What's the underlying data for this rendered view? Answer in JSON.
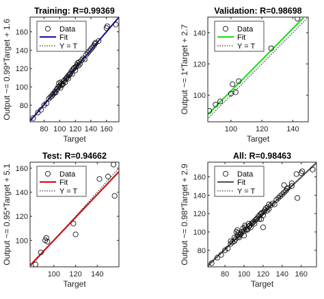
{
  "chart_data": [
    {
      "type": "scatter",
      "title": "Training: R=0.99369",
      "xlabel": "Target",
      "ylabel": "Output ~= 0.99*Target + 1.6",
      "xlim": [
        62,
        176
      ],
      "ylim": [
        62,
        176
      ],
      "xticks": [
        80,
        100,
        120,
        140,
        160
      ],
      "yticks": [
        80,
        100,
        120,
        140,
        160
      ],
      "fit": {
        "slope": 0.99,
        "intercept": 1.6,
        "color": "#1a1aa6"
      },
      "legend": {
        "placement": "top-left",
        "entries": [
          "Data",
          "Fit",
          "Y = T"
        ]
      },
      "points": [
        [
          66,
          66
        ],
        [
          72,
          72
        ],
        [
          76,
          75
        ],
        [
          80,
          80
        ],
        [
          83,
          82
        ],
        [
          86,
          87
        ],
        [
          88,
          89
        ],
        [
          90,
          90
        ],
        [
          91,
          92
        ],
        [
          93,
          93
        ],
        [
          94,
          95
        ],
        [
          95,
          94
        ],
        [
          96,
          97
        ],
        [
          97,
          98
        ],
        [
          98,
          100
        ],
        [
          99,
          104
        ],
        [
          100,
          101
        ],
        [
          101,
          105
        ],
        [
          101,
          99
        ],
        [
          102,
          103
        ],
        [
          103,
          102
        ],
        [
          104,
          103
        ],
        [
          105,
          106
        ],
        [
          106,
          107
        ],
        [
          107,
          105
        ],
        [
          108,
          109
        ],
        [
          109,
          110
        ],
        [
          110,
          111
        ],
        [
          111,
          109
        ],
        [
          112,
          113
        ],
        [
          113,
          114
        ],
        [
          114,
          115
        ],
        [
          115,
          117
        ],
        [
          116,
          114
        ],
        [
          117,
          119
        ],
        [
          118,
          120
        ],
        [
          119,
          121
        ],
        [
          120,
          118
        ],
        [
          121,
          122
        ],
        [
          122,
          124
        ],
        [
          123,
          126
        ],
        [
          124,
          123
        ],
        [
          125,
          127
        ],
        [
          126,
          125
        ],
        [
          128,
          129
        ],
        [
          130,
          131
        ],
        [
          132,
          130
        ],
        [
          134,
          135
        ],
        [
          136,
          137
        ],
        [
          138,
          139
        ],
        [
          140,
          141
        ],
        [
          142,
          143
        ],
        [
          144,
          145
        ],
        [
          145,
          147
        ],
        [
          146,
          148
        ],
        [
          150,
          150
        ],
        [
          160,
          164
        ],
        [
          161,
          166
        ],
        [
          172,
          168
        ]
      ]
    },
    {
      "type": "scatter",
      "title": "Validation: R=0.98698",
      "xlabel": "Target",
      "ylabel": "Output ~= 1*Target + 2.7",
      "xlim": [
        85,
        150
      ],
      "ylim": [
        83,
        150
      ],
      "xticks": [
        100,
        120,
        140
      ],
      "yticks": [
        100,
        120,
        140
      ],
      "fit": {
        "slope": 1.0,
        "intercept": 2.7,
        "color": "#22dd22"
      },
      "legend": {
        "placement": "top-left",
        "entries": [
          "Data",
          "Fit",
          "Y = T"
        ]
      },
      "points": [
        [
          86,
          90
        ],
        [
          90,
          94
        ],
        [
          93,
          96
        ],
        [
          100,
          101
        ],
        [
          101,
          107
        ],
        [
          103,
          102
        ],
        [
          105,
          109
        ],
        [
          126,
          130
        ],
        [
          143,
          149
        ]
      ]
    },
    {
      "type": "scatter",
      "title": "Test: R=0.94662",
      "xlabel": "Target",
      "ylabel": "Output ~= 0.95*Target + 5.1",
      "xlim": [
        78,
        160
      ],
      "ylim": [
        78,
        165
      ],
      "xticks": [
        100,
        120,
        140
      ],
      "yticks": [
        100,
        120,
        140,
        160
      ],
      "fit": {
        "slope": 0.95,
        "intercept": 5.1,
        "color": "#cc1111"
      },
      "legend": {
        "placement": "top-left",
        "entries": [
          "Data",
          "Fit",
          "Y = T"
        ]
      },
      "points": [
        [
          83,
          80
        ],
        [
          88,
          90
        ],
        [
          92,
          100
        ],
        [
          93,
          102
        ],
        [
          94,
          99
        ],
        [
          118,
          114
        ],
        [
          120,
          105
        ],
        [
          142,
          151
        ],
        [
          150,
          153
        ],
        [
          155,
          163
        ],
        [
          156,
          137
        ]
      ]
    },
    {
      "type": "scatter",
      "title": "All: R=0.98463",
      "xlabel": "Target",
      "ylabel": "Output ~= 0.98*Target + 2.9",
      "xlim": [
        62,
        176
      ],
      "ylim": [
        62,
        176
      ],
      "xticks": [
        80,
        100,
        120,
        140,
        160
      ],
      "yticks": [
        80,
        100,
        120,
        140,
        160
      ],
      "fit": {
        "slope": 0.98,
        "intercept": 2.9,
        "color": "#555555"
      },
      "legend": {
        "placement": "top-left",
        "entries": [
          "Data",
          "Fit",
          "Y = T"
        ]
      },
      "points": [
        [
          66,
          66
        ],
        [
          72,
          72
        ],
        [
          76,
          75
        ],
        [
          80,
          80
        ],
        [
          83,
          82
        ],
        [
          86,
          87
        ],
        [
          86,
          90
        ],
        [
          88,
          89
        ],
        [
          90,
          94
        ],
        [
          90,
          90
        ],
        [
          91,
          92
        ],
        [
          92,
          100
        ],
        [
          93,
          96
        ],
        [
          93,
          102
        ],
        [
          94,
          95
        ],
        [
          94,
          99
        ],
        [
          95,
          94
        ],
        [
          96,
          97
        ],
        [
          97,
          98
        ],
        [
          98,
          100
        ],
        [
          99,
          104
        ],
        [
          100,
          101
        ],
        [
          100,
          96
        ],
        [
          101,
          105
        ],
        [
          101,
          107
        ],
        [
          102,
          103
        ],
        [
          103,
          102
        ],
        [
          104,
          103
        ],
        [
          105,
          109
        ],
        [
          105,
          106
        ],
        [
          106,
          107
        ],
        [
          107,
          105
        ],
        [
          108,
          109
        ],
        [
          109,
          110
        ],
        [
          110,
          111
        ],
        [
          111,
          109
        ],
        [
          112,
          113
        ],
        [
          113,
          114
        ],
        [
          114,
          115
        ],
        [
          115,
          117
        ],
        [
          116,
          114
        ],
        [
          117,
          119
        ],
        [
          118,
          114
        ],
        [
          118,
          120
        ],
        [
          119,
          121
        ],
        [
          120,
          105
        ],
        [
          120,
          118
        ],
        [
          121,
          122
        ],
        [
          122,
          124
        ],
        [
          123,
          126
        ],
        [
          124,
          123
        ],
        [
          125,
          127
        ],
        [
          126,
          130
        ],
        [
          126,
          125
        ],
        [
          128,
          129
        ],
        [
          130,
          131
        ],
        [
          132,
          130
        ],
        [
          134,
          135
        ],
        [
          136,
          137
        ],
        [
          138,
          139
        ],
        [
          140,
          141
        ],
        [
          142,
          151
        ],
        [
          142,
          143
        ],
        [
          144,
          145
        ],
        [
          145,
          147
        ],
        [
          146,
          148
        ],
        [
          150,
          153
        ],
        [
          150,
          150
        ],
        [
          155,
          163
        ],
        [
          156,
          137
        ],
        [
          160,
          164
        ],
        [
          161,
          166
        ],
        [
          172,
          168
        ]
      ]
    }
  ]
}
